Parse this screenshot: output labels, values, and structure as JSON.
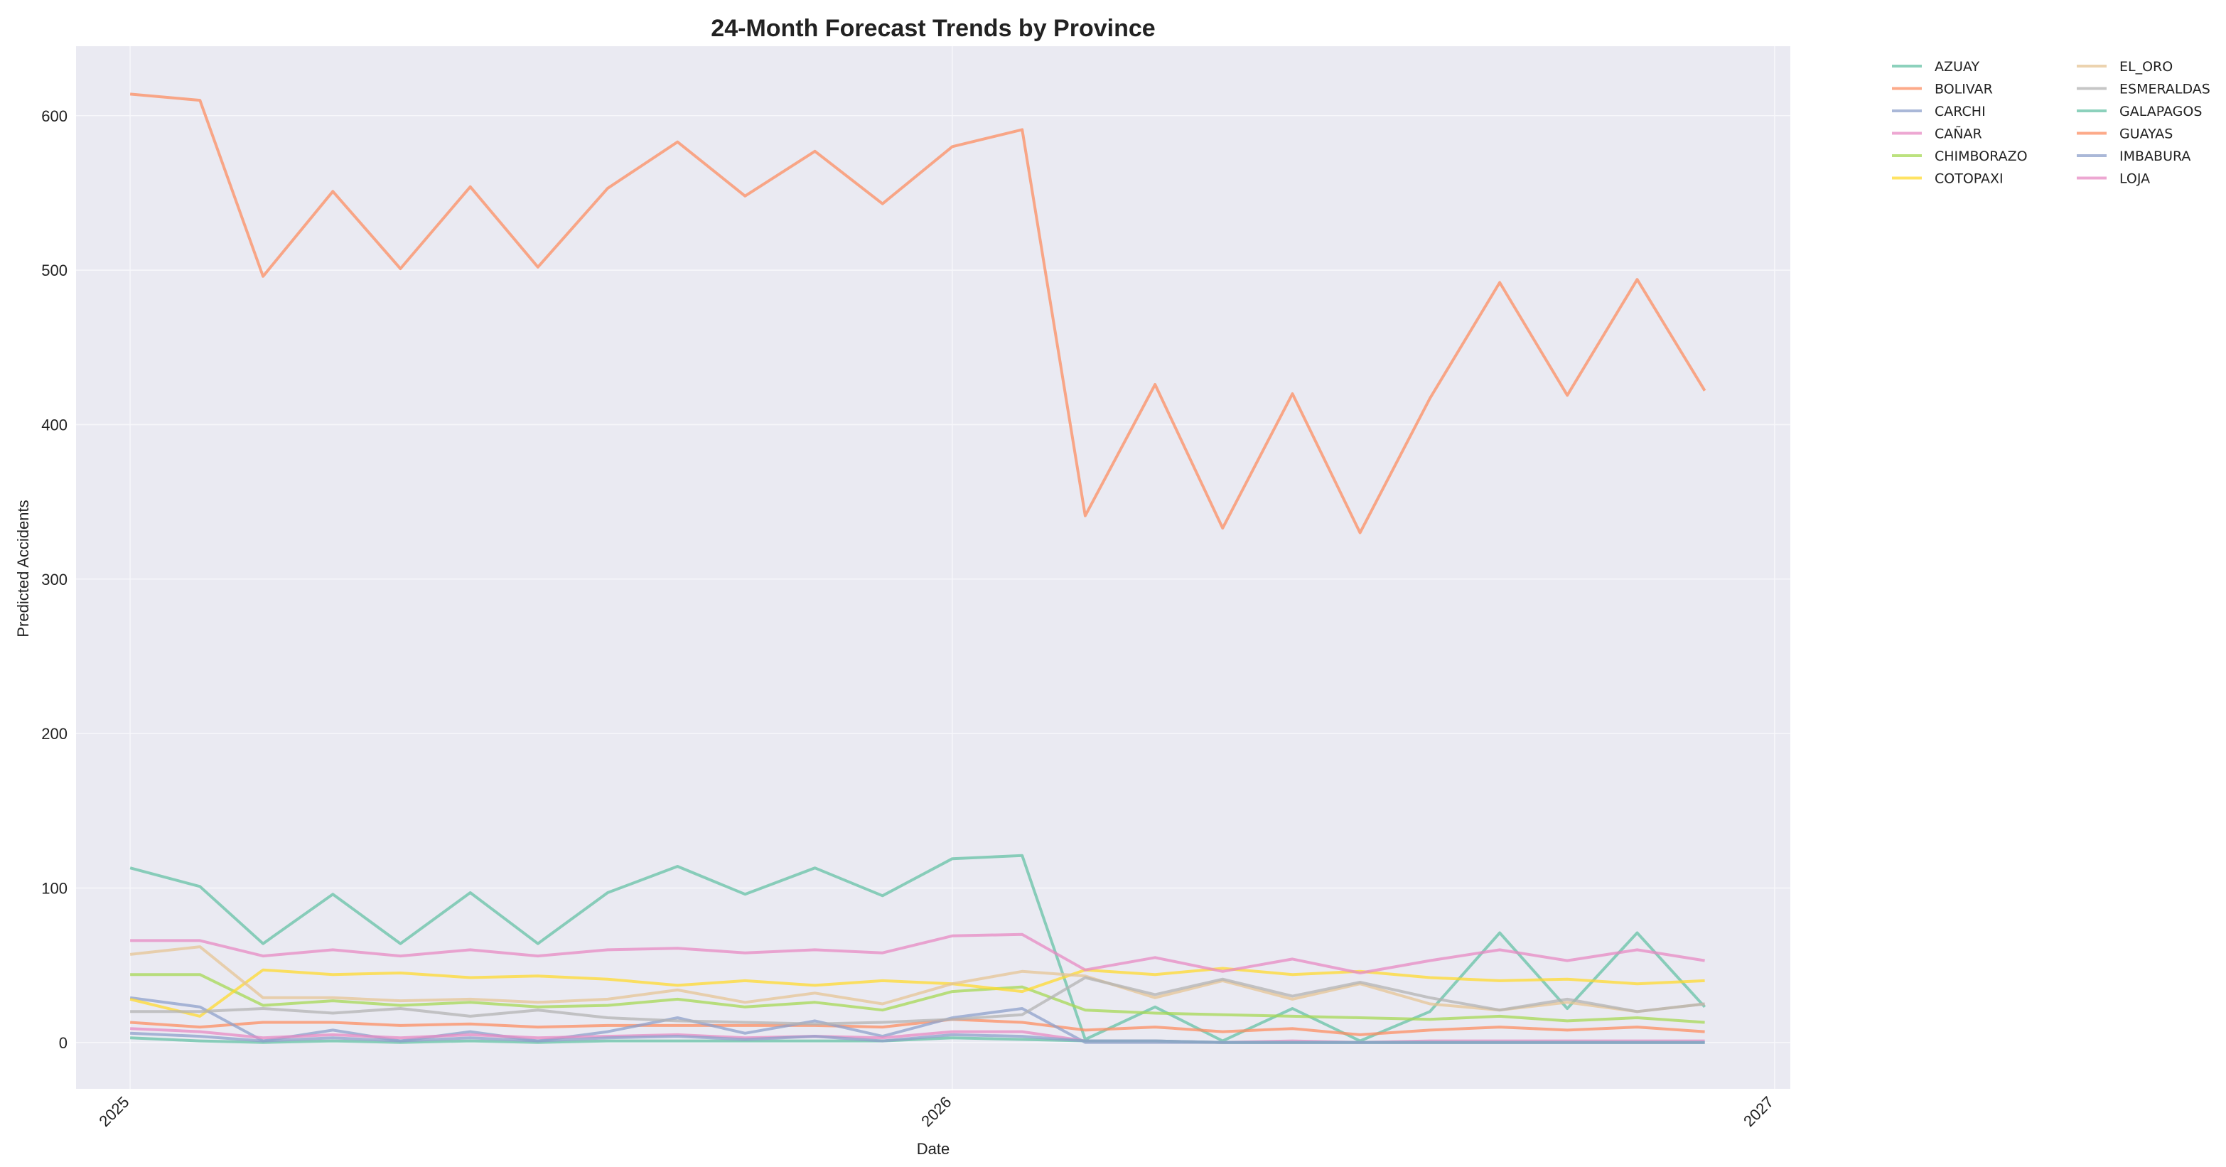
{
  "chart_data": {
    "type": "line",
    "title": "24-Month Forecast Trends by Province",
    "xlabel": "Date",
    "ylabel": "Predicted Accidents",
    "x": [
      "2025-01",
      "2025-02",
      "2025-03",
      "2025-04",
      "2025-05",
      "2025-06",
      "2025-07",
      "2025-08",
      "2025-09",
      "2025-10",
      "2025-11",
      "2025-12",
      "2026-01",
      "2026-02",
      "2026-03",
      "2026-04",
      "2026-05",
      "2026-06",
      "2026-07",
      "2026-08",
      "2026-09",
      "2026-10",
      "2026-11",
      "2026-12"
    ],
    "x_ticks": [
      "2025",
      "2026",
      "2027"
    ],
    "xlim": [
      "2024-12-08",
      "2027-01-08"
    ],
    "ylim": [
      -30,
      645
    ],
    "y_ticks": [
      0,
      100,
      200,
      300,
      400,
      500,
      600
    ],
    "grid": true,
    "legend_position": "outside-top-right",
    "series": [
      {
        "name": "AZUAY",
        "color": "#66c2a5",
        "values": [
          113,
          101,
          64,
          96,
          64,
          97,
          64,
          97,
          114,
          96,
          113,
          95,
          119,
          121,
          2,
          23,
          1,
          22,
          1,
          20,
          71,
          22,
          71,
          23
        ]
      },
      {
        "name": "BOLIVAR",
        "color": "#fc8d62",
        "values": [
          13,
          10,
          13,
          13,
          11,
          12,
          10,
          11,
          11,
          11,
          11,
          10,
          15,
          13,
          8,
          10,
          7,
          9,
          5,
          8,
          10,
          8,
          10,
          7
        ]
      },
      {
        "name": "CARCHI",
        "color": "#8da0cb",
        "values": [
          29,
          23,
          1,
          8,
          1,
          7,
          1,
          7,
          16,
          6,
          14,
          4,
          16,
          22,
          0,
          0,
          0,
          0,
          0,
          0,
          0,
          0,
          0,
          0
        ]
      },
      {
        "name": "CAÑAR",
        "color": "#e78ac3",
        "values": [
          9,
          7,
          3,
          5,
          3,
          5,
          3,
          4,
          5,
          3,
          4,
          3,
          7,
          7,
          1,
          1,
          0,
          1,
          0,
          1,
          1,
          1,
          1,
          1
        ]
      },
      {
        "name": "CHIMBORAZO",
        "color": "#a6d854",
        "values": [
          44,
          44,
          24,
          27,
          24,
          26,
          23,
          24,
          28,
          23,
          26,
          21,
          33,
          36,
          21,
          19,
          18,
          17,
          16,
          15,
          17,
          14,
          16,
          13
        ]
      },
      {
        "name": "COTOPAXI",
        "color": "#ffd92f",
        "values": [
          28,
          17,
          47,
          44,
          45,
          42,
          43,
          41,
          37,
          40,
          37,
          40,
          38,
          33,
          47,
          44,
          48,
          44,
          46,
          42,
          40,
          41,
          38,
          40
        ]
      },
      {
        "name": "EL_ORO",
        "color": "#e5c494",
        "values": [
          57,
          62,
          29,
          29,
          27,
          28,
          26,
          28,
          34,
          26,
          32,
          25,
          38,
          46,
          43,
          29,
          40,
          28,
          38,
          25,
          21,
          26,
          20,
          25
        ]
      },
      {
        "name": "ESMERALDAS",
        "color": "#b3b3b3",
        "values": [
          20,
          20,
          22,
          19,
          22,
          17,
          21,
          16,
          14,
          13,
          12,
          13,
          15,
          18,
          42,
          31,
          41,
          30,
          39,
          29,
          21,
          28,
          20,
          25
        ]
      },
      {
        "name": "GALAPAGOS",
        "color": "#66c2a5",
        "values": [
          3,
          1,
          0,
          1,
          0,
          1,
          0,
          1,
          1,
          1,
          1,
          1,
          3,
          2,
          1,
          1,
          0,
          0,
          0,
          0,
          0,
          0,
          0,
          0
        ]
      },
      {
        "name": "GUAYAS",
        "color": "#fc8d62",
        "values": [
          614,
          610,
          496,
          551,
          501,
          554,
          502,
          553,
          583,
          548,
          577,
          543,
          580,
          591,
          341,
          426,
          333,
          420,
          330,
          417,
          492,
          419,
          494,
          422
        ]
      },
      {
        "name": "IMBABURA",
        "color": "#8da0cb",
        "values": [
          6,
          4,
          1,
          3,
          1,
          3,
          1,
          3,
          4,
          2,
          4,
          1,
          5,
          4,
          1,
          1,
          0,
          0,
          0,
          0,
          0,
          0,
          0,
          0
        ]
      },
      {
        "name": "LOJA",
        "color": "#e78ac3",
        "values": [
          66,
          66,
          56,
          60,
          56,
          60,
          56,
          60,
          61,
          58,
          60,
          58,
          69,
          70,
          47,
          55,
          46,
          54,
          45,
          53,
          60,
          53,
          60,
          53
        ]
      }
    ]
  }
}
